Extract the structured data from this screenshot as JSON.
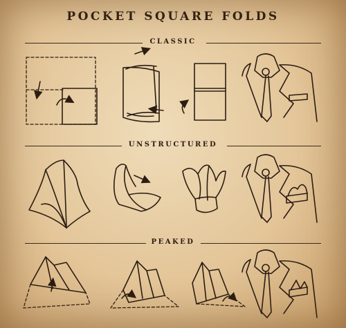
{
  "title": "POCKET SQUARE FOLDS",
  "sections": [
    {
      "label": "CLASSIC"
    },
    {
      "label": "UNSTRUCTURED"
    },
    {
      "label": "PEAKED"
    }
  ],
  "colors": {
    "ink": "#2b1d12",
    "paper": "#e3c598"
  }
}
